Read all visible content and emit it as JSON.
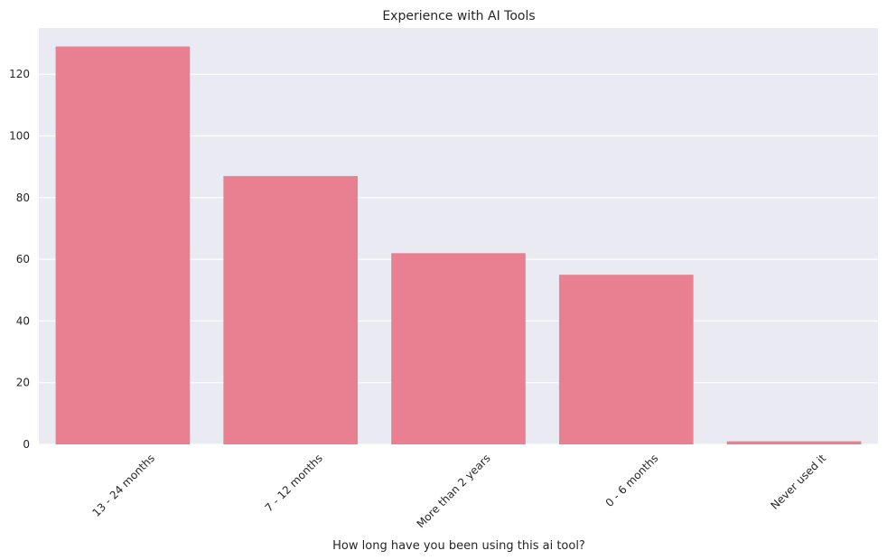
{
  "chart_data": {
    "type": "bar",
    "title": "Experience with AI Tools",
    "xlabel": "How long have you been using this ai tool?",
    "ylabel": "",
    "categories": [
      "13 -  24 months",
      "7 - 12 months",
      "More than 2 years",
      "0 - 6 months",
      "Never used it"
    ],
    "values": [
      129,
      87,
      62,
      55,
      1
    ],
    "ylim": [
      0,
      135
    ],
    "yticks": [
      0,
      20,
      40,
      60,
      80,
      100,
      120
    ],
    "grid": true,
    "legend": "none",
    "colors": {
      "bar": "#e88092",
      "plot_background": "#eaeaf2",
      "grid": "#ffffff"
    }
  }
}
